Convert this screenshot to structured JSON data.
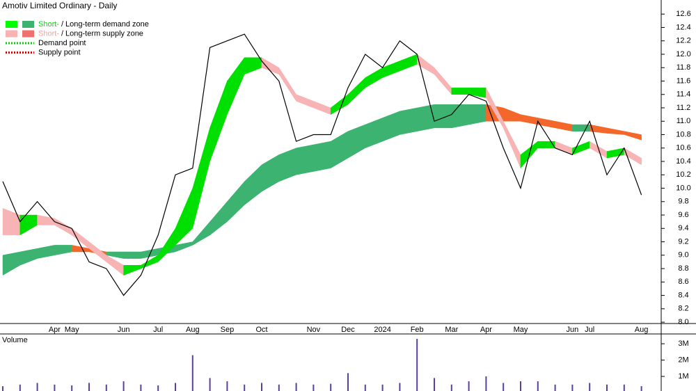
{
  "chart_data": [
    {
      "type": "line",
      "title": "Amotiv Limited Ordinary - Daily",
      "color": "#000000",
      "categories": [
        null,
        null,
        null,
        "Apr",
        "May",
        null,
        null,
        "Jun",
        null,
        "Jul",
        null,
        "Aug",
        null,
        "Sep",
        null,
        "Oct",
        null,
        null,
        "Nov",
        null,
        "Dec",
        null,
        "2024",
        null,
        "Feb",
        null,
        "Mar",
        null,
        "Apr",
        null,
        "May",
        null,
        null,
        "Jun",
        "Jul",
        null,
        null,
        "Aug"
      ],
      "values": [
        10.1,
        9.5,
        9.8,
        9.5,
        9.4,
        8.9,
        8.8,
        8.4,
        8.7,
        9.3,
        10.2,
        10.3,
        12.1,
        12.2,
        12.3,
        11.9,
        11.6,
        10.7,
        10.8,
        10.8,
        11.5,
        12.0,
        11.8,
        12.2,
        12.0,
        11.0,
        11.1,
        11.4,
        11.3,
        10.6,
        10.0,
        11.0,
        10.6,
        10.5,
        11.0,
        10.2,
        10.6,
        9.9
      ],
      "zones": [
        {
          "upper": [
            9.0,
            9.05,
            9.1,
            9.15,
            9.15,
            9.1,
            9.05,
            9.05,
            9.05,
            9.1,
            9.15,
            9.2,
            9.5,
            9.8,
            10.1,
            10.35,
            10.5,
            10.6,
            10.65,
            10.7,
            10.85,
            10.95,
            11.05,
            11.15,
            11.2,
            11.25,
            11.25,
            11.25,
            11.25,
            11.2,
            11.1,
            11.05,
            11.0,
            10.95,
            10.95,
            10.9,
            10.85,
            10.8
          ],
          "lower": [
            8.7,
            8.85,
            8.95,
            9.0,
            9.05,
            9.05,
            9.0,
            8.95,
            8.95,
            9.0,
            9.05,
            9.15,
            9.3,
            9.5,
            9.75,
            9.95,
            10.1,
            10.2,
            10.25,
            10.3,
            10.45,
            10.6,
            10.7,
            10.8,
            10.85,
            10.9,
            10.9,
            10.95,
            11.0,
            11.0,
            11.0,
            10.95,
            10.9,
            10.85,
            10.85,
            10.82,
            10.8,
            10.72
          ],
          "demand_color": "#3cb371",
          "supply_color": "#f4672a"
        },
        {
          "upper": [
            9.7,
            9.6,
            9.6,
            9.55,
            9.4,
            9.2,
            9.0,
            8.85,
            8.85,
            9.0,
            9.4,
            10.0,
            10.9,
            11.6,
            11.95,
            11.95,
            11.8,
            11.4,
            11.3,
            11.2,
            11.4,
            11.65,
            11.8,
            11.9,
            12.0,
            11.8,
            11.5,
            11.5,
            11.5,
            11.0,
            10.5,
            10.7,
            10.7,
            10.6,
            10.7,
            10.55,
            10.6,
            10.45
          ],
          "lower": [
            9.3,
            9.3,
            9.45,
            9.45,
            9.3,
            9.1,
            8.9,
            8.7,
            8.8,
            8.9,
            9.15,
            9.4,
            10.4,
            11.1,
            11.7,
            11.8,
            11.7,
            11.3,
            11.2,
            11.1,
            11.25,
            11.5,
            11.65,
            11.75,
            11.85,
            11.7,
            11.4,
            11.4,
            11.35,
            10.9,
            10.3,
            10.6,
            10.6,
            10.5,
            10.6,
            10.45,
            10.5,
            10.35
          ],
          "demand_color": "#00e000",
          "supply_color": "#f8b4b4"
        }
      ],
      "legend": [
        {
          "swatches": [
            "#00ff00",
            "#3cb371"
          ],
          "parts": [
            {
              "text": "Short-",
              "color": "#00dd00"
            },
            {
              "text": "/",
              "color": "#000000"
            },
            {
              "text": "Long-term demand zone",
              "color": "#000000"
            }
          ]
        },
        {
          "swatches": [
            "#f8b4b4",
            "#f07070"
          ],
          "parts": [
            {
              "text": "Short-",
              "color": "#f8a0a0"
            },
            {
              "text": "/",
              "color": "#000000"
            },
            {
              "text": "Long-term supply zone",
              "color": "#000000"
            }
          ]
        },
        {
          "dash_color": "#00cc00",
          "parts": [
            {
              "text": "Demand point",
              "color": "#000000"
            }
          ]
        },
        {
          "dash_color": "#dd0000",
          "parts": [
            {
              "text": "Supply point",
              "color": "#000000"
            }
          ]
        }
      ],
      "ylim": [
        7.98,
        12.81
      ],
      "yticks": [
        {
          "value": 8,
          "label": "8.0"
        },
        8.2,
        8.4,
        8.6,
        8.8,
        {
          "value": 9,
          "label": "9.0"
        },
        9.2,
        9.4,
        9.6,
        9.8,
        {
          "value": 10,
          "label": "10.0"
        },
        10.2,
        10.4,
        10.6,
        10.8,
        {
          "value": 11,
          "label": "11.0"
        },
        11.2,
        11.4,
        11.6,
        11.8,
        {
          "value": 12,
          "label": "12.0"
        },
        12.2,
        12.4,
        12.6
      ]
    },
    {
      "type": "bar",
      "title": "Volume",
      "title_color": "#5b2a86",
      "color": "#5a3fa0",
      "values": [
        400000,
        500000,
        600000,
        500000,
        450000,
        600000,
        500000,
        700000,
        500000,
        450000,
        600000,
        2300000,
        900000,
        700000,
        500000,
        600000,
        500000,
        600000,
        500000,
        550000,
        1200000,
        500000,
        500000,
        600000,
        3300000,
        900000,
        500000,
        700000,
        1000000,
        600000,
        700000,
        700000,
        500000,
        500000,
        600000,
        500000,
        500000,
        400000
      ],
      "ylim": [
        0,
        3600000
      ],
      "yticks": [
        {
          "value": 1000000,
          "label": "1M"
        },
        {
          "value": 2000000,
          "label": "2M"
        },
        {
          "value": 3000000,
          "label": "3M"
        }
      ]
    }
  ]
}
